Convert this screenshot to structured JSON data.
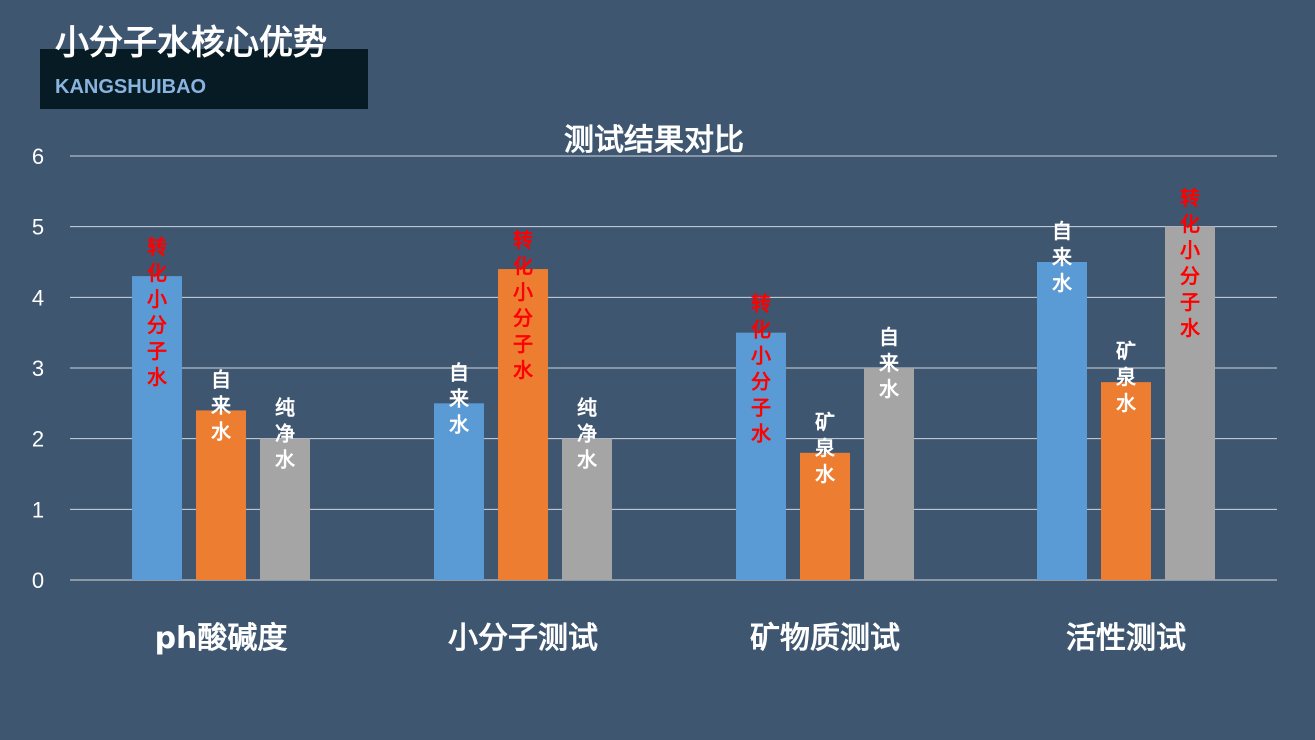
{
  "header": {
    "title": "小分子水核心优势",
    "subtitle": "KANGSHUIBAO"
  },
  "colors": {
    "background": "#3e5670",
    "header_box": "#061b24",
    "blue": "#5b9bd5",
    "orange": "#ed7d31",
    "gray": "#a5a5a5",
    "highlight_label": "#ff0000",
    "label": "#ffffff"
  },
  "chart_data": {
    "type": "bar",
    "title": "测试结果对比",
    "categories": [
      "ph酸碱度",
      "小分子测试",
      "矿物质测试",
      "活性测试"
    ],
    "ylim": [
      0,
      6
    ],
    "yticks": [
      "0",
      "1",
      "2",
      "3",
      "4",
      "5",
      "6"
    ],
    "grid": true,
    "legend": "none",
    "bars": [
      [
        {
          "label": "转化小分子水",
          "value": 4.3,
          "color": "blue",
          "highlight": true
        },
        {
          "label": "自来水",
          "value": 2.4,
          "color": "orange",
          "highlight": false
        },
        {
          "label": "纯净水",
          "value": 2.0,
          "color": "gray",
          "highlight": false
        }
      ],
      [
        {
          "label": "自来水",
          "value": 2.5,
          "color": "blue",
          "highlight": false
        },
        {
          "label": "转化小分子水",
          "value": 4.4,
          "color": "orange",
          "highlight": true
        },
        {
          "label": "纯净水",
          "value": 2.0,
          "color": "gray",
          "highlight": false
        }
      ],
      [
        {
          "label": "转化小分子水",
          "value": 3.5,
          "color": "blue",
          "highlight": true
        },
        {
          "label": "矿泉水",
          "value": 1.8,
          "color": "orange",
          "highlight": false
        },
        {
          "label": "自来水",
          "value": 3.0,
          "color": "gray",
          "highlight": false
        }
      ],
      [
        {
          "label": "自来水",
          "value": 4.5,
          "color": "blue",
          "highlight": false
        },
        {
          "label": "矿泉水",
          "value": 2.8,
          "color": "orange",
          "highlight": false
        },
        {
          "label": "转化小分子水",
          "value": 5.0,
          "color": "gray",
          "highlight": true
        }
      ]
    ]
  }
}
